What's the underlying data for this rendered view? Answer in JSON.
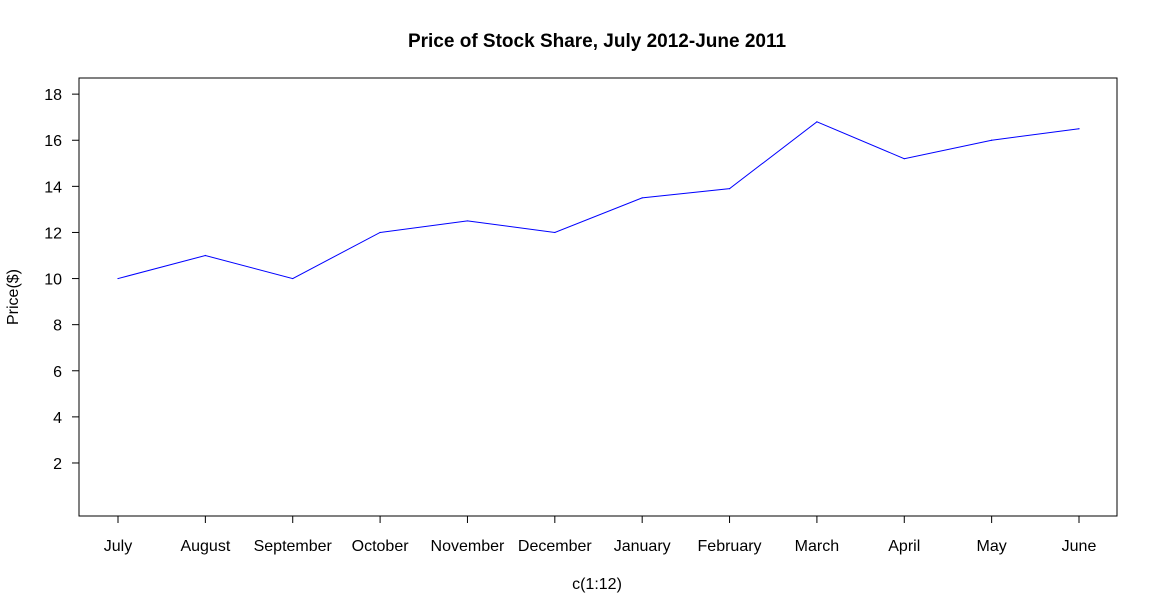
{
  "chart_data": {
    "type": "line",
    "title": "Price of Stock Share, July 2012-June 2011",
    "xlabel": "c(1:12)",
    "ylabel": "Price($)",
    "categories": [
      "July",
      "August",
      "September",
      "October",
      "November",
      "December",
      "January",
      "February",
      "March",
      "April",
      "May",
      "June"
    ],
    "series": [
      {
        "values": [
          10,
          11,
          10,
          12,
          12.5,
          12,
          13.5,
          13.9,
          16.8,
          15.2,
          16,
          16.5
        ],
        "color": "#0000ff"
      }
    ],
    "y_ticks": [
      "2",
      "4",
      "6",
      "8",
      "10",
      "12",
      "14",
      "16",
      "18"
    ],
    "ylim": [
      -0.3,
      18.7
    ],
    "grid": false,
    "legend": "none"
  }
}
